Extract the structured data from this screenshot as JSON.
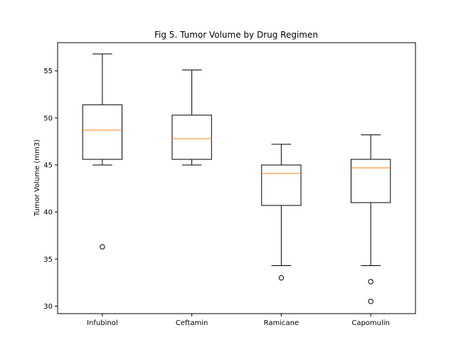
{
  "chart_data": {
    "type": "box",
    "title": "Fig 5. Tumor Volume by Drug Regimen",
    "xlabel": "",
    "ylabel": "Tumor Volume (mm3)",
    "ylim": [
      29.2,
      58.0
    ],
    "yticks": [
      30,
      35,
      40,
      45,
      50,
      55
    ],
    "grid": false,
    "categories": [
      "Infubinol",
      "Ceftamin",
      "Ramicane",
      "Capomulin"
    ],
    "boxes": [
      {
        "name": "Infubinol",
        "whisker_low": 45.0,
        "q1": 45.6,
        "median": 48.7,
        "q3": 51.4,
        "whisker_high": 56.8,
        "outliers": [
          36.3
        ]
      },
      {
        "name": "Ceftamin",
        "whisker_low": 45.0,
        "q1": 45.6,
        "median": 47.8,
        "q3": 50.3,
        "whisker_high": 55.1,
        "outliers": []
      },
      {
        "name": "Ramicane",
        "whisker_low": 34.3,
        "q1": 40.7,
        "median": 44.1,
        "q3": 45.0,
        "whisker_high": 47.2,
        "outliers": [
          33.0
        ]
      },
      {
        "name": "Capomulin",
        "whisker_low": 34.3,
        "q1": 41.0,
        "median": 44.7,
        "q3": 45.6,
        "whisker_high": 48.2,
        "outliers": [
          32.6,
          30.5
        ]
      }
    ],
    "colors": {
      "box": "#000000",
      "median": "#ff7f0e",
      "outlier": "#000000"
    }
  }
}
